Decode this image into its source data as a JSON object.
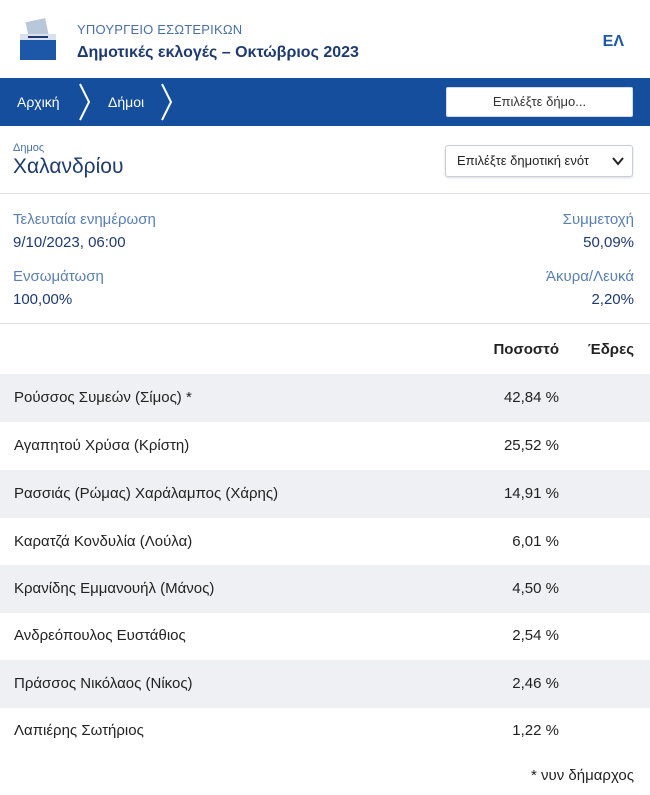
{
  "header": {
    "ministry": "ΥΠΟΥΡΓΕΙΟ ΕΣΩΤΕΡΙΚΩΝ",
    "election_title": "Δημοτικές εκλογές – Οκτώβριος 2023",
    "language": "ΕΛ",
    "logo_icon": "ballot-box-icon"
  },
  "nav": {
    "breadcrumbs": [
      "Αρχική",
      "Δήμοι"
    ],
    "select_municipality_label": "Επιλέξτε δήμο..."
  },
  "municipality": {
    "label": "Δημος",
    "name": "Χαλανδρίου",
    "unit_select_value": "Επιλέξτε δημοτική ενότ"
  },
  "stats": {
    "last_update_label": "Τελευταία ενημέρωση",
    "last_update_value": "9/10/2023, 06:00",
    "turnout_label": "Συμμετοχή",
    "turnout_value": "50,09%",
    "integration_label": "Ενσωμάτωση",
    "integration_value": "100,00%",
    "invalid_label": "Άκυρα/Λευκά",
    "invalid_value": "2,20%"
  },
  "table": {
    "columns": [
      "Ποσοστό",
      "Έδρες"
    ],
    "rows": [
      {
        "candidate": "Ρούσσος Συμεών (Σίμος) *",
        "percent": "42,84 %"
      },
      {
        "candidate": "Αγαπητού Χρύσα (Κρίστη)",
        "percent": "25,52 %"
      },
      {
        "candidate": "Ρασσιάς (Ρώμας) Χαράλαμπος (Χάρης)",
        "percent": "14,91 %"
      },
      {
        "candidate": "Καρατζά Κονδυλία (Λούλα)",
        "percent": "6,01 %"
      },
      {
        "candidate": "Κρανίδης Εμμανουήλ (Μάνος)",
        "percent": "4,50 %"
      },
      {
        "candidate": "Ανδρεόπουλος Ευστάθιος",
        "percent": "2,54 %"
      },
      {
        "candidate": "Πράσσος Νικόλαος (Νίκος)",
        "percent": "2,46 %"
      },
      {
        "candidate": "Λαπιέρης Σωτήριος",
        "percent": "1,22 %"
      }
    ],
    "footnote": "* νυν δήμαρχος"
  },
  "colors": {
    "nav_bg": "#154e9c",
    "title": "#1e3a6e",
    "label": "#5a7fb0",
    "row_shade": "#eef0f3"
  }
}
